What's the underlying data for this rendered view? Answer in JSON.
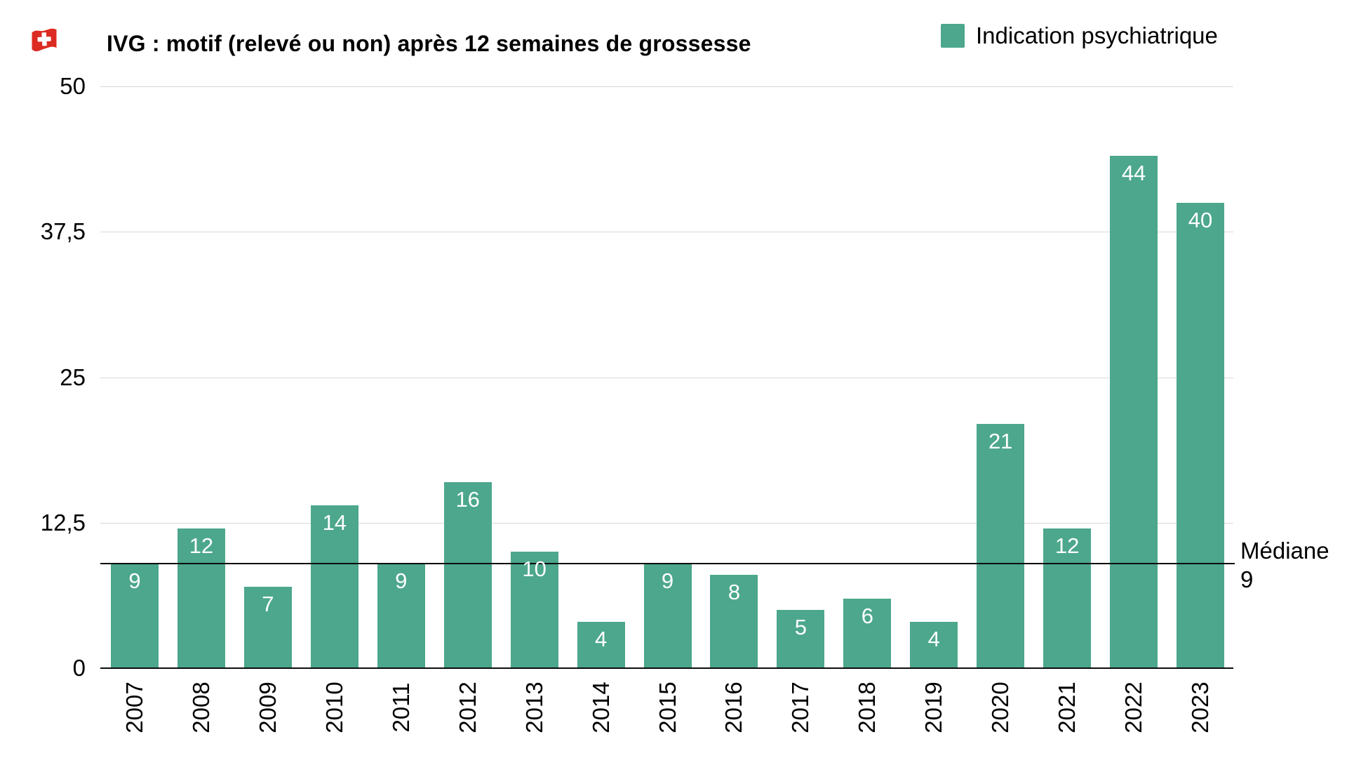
{
  "header": {
    "flag_icon": "swiss-flag",
    "title": "IVG : motif (relevé ou non) après 12 semaines de grossesse"
  },
  "legend": {
    "swatch_color": "#4CA78C",
    "label": "Indication psychiatrique"
  },
  "annotation": {
    "label": "Médiane",
    "value_label": "9"
  },
  "chart_data": {
    "type": "bar",
    "title": "IVG : motif (relevé ou non) après 12 semaines de grossesse",
    "categories": [
      "2007",
      "2008",
      "2009",
      "2010",
      "2011",
      "2012",
      "2013",
      "2014",
      "2015",
      "2016",
      "2017",
      "2018",
      "2019",
      "2020",
      "2021",
      "2022",
      "2023"
    ],
    "series": [
      {
        "name": "Indication psychiatrique",
        "values": [
          9,
          12,
          7,
          14,
          9,
          16,
          10,
          4,
          9,
          8,
          5,
          6,
          4,
          21,
          12,
          44,
          40
        ]
      }
    ],
    "bar_value_labels": [
      "9",
      "12",
      "7",
      "14",
      "9",
      "16",
      "10",
      "4",
      "9",
      "8",
      "5",
      "6",
      "4",
      "21",
      "12",
      "44",
      "40"
    ],
    "ylim": [
      0,
      50
    ],
    "yticks": [
      {
        "value": 0,
        "label": "0"
      },
      {
        "value": 12.5,
        "label": "12,5"
      },
      {
        "value": 25,
        "label": "25"
      },
      {
        "value": 37.5,
        "label": "37,5"
      },
      {
        "value": 50,
        "label": "50"
      }
    ],
    "xlabel": "",
    "ylabel": "",
    "grid": true,
    "legend_position": "top-right",
    "bar_color": "#4CA78C",
    "bar_label_color": "#ffffff",
    "gridline_color": "#d9d9d9",
    "axis_color": "#0d0d0d",
    "median": {
      "value": 9,
      "label": "Médiane",
      "value_label": "9"
    }
  }
}
